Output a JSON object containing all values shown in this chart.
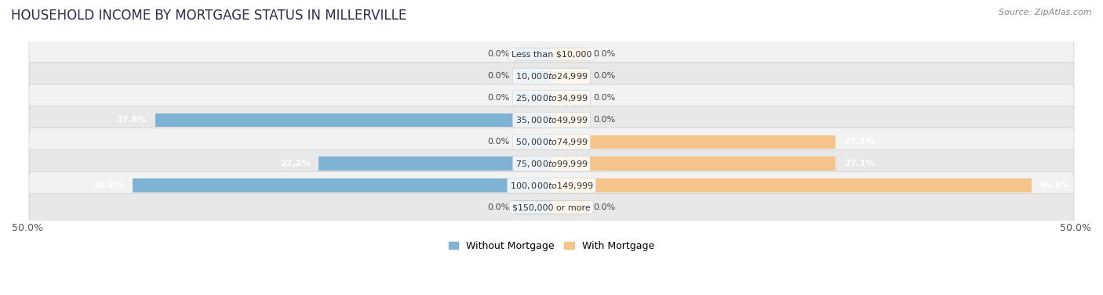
{
  "title": "HOUSEHOLD INCOME BY MORTGAGE STATUS IN MILLERVILLE",
  "source": "Source: ZipAtlas.com",
  "categories": [
    "Less than $10,000",
    "$10,000 to $24,999",
    "$25,000 to $34,999",
    "$35,000 to $49,999",
    "$50,000 to $74,999",
    "$75,000 to $99,999",
    "$100,000 to $149,999",
    "$150,000 or more"
  ],
  "without_mortgage": [
    0.0,
    0.0,
    0.0,
    37.8,
    0.0,
    22.2,
    40.0,
    0.0
  ],
  "with_mortgage": [
    0.0,
    0.0,
    0.0,
    0.0,
    27.1,
    27.1,
    45.8,
    0.0
  ],
  "color_without": "#7fb3d3",
  "color_with": "#f5c48a",
  "row_colors": [
    "#f2f2f2",
    "#e8e8e8"
  ],
  "xlim": 50.0,
  "zero_bar_width": 3.5,
  "legend_labels": [
    "Without Mortgage",
    "With Mortgage"
  ],
  "title_fontsize": 12,
  "source_fontsize": 8,
  "axis_label_fontsize": 9,
  "bar_label_fontsize": 8,
  "category_fontsize": 8
}
